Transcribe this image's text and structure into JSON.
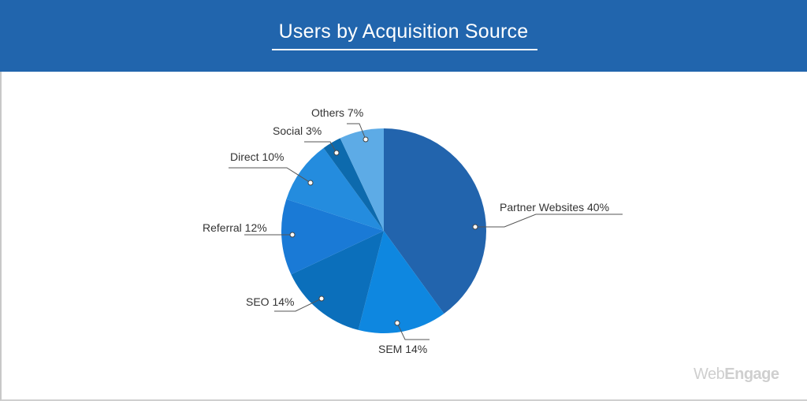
{
  "header": {
    "title": "Users by Acquisition Source",
    "background": "#2165ad"
  },
  "brand": {
    "name_light": "Web",
    "name_bold": "Engage"
  },
  "chart_data": {
    "type": "pie",
    "title": "Users by Acquisition Source",
    "categories": [
      "Partner Websites",
      "SEM",
      "SEO",
      "Referral",
      "Direct",
      "Social",
      "Others"
    ],
    "values": [
      40,
      14,
      14,
      12,
      10,
      3,
      7
    ],
    "unit": "%",
    "labels": [
      "Partner Websites 40%",
      "SEM 14%",
      "SEO 14%",
      "Referral 12%",
      "Direct 10%",
      "Social 3%",
      "Others 7%"
    ],
    "colors": [
      "#2264ad",
      "#0e87e0",
      "#0b6fbb",
      "#1a7ad6",
      "#248cde",
      "#0d6aad",
      "#5dabe6"
    ],
    "start_angle": "12 o'clock, clockwise",
    "legend": "none (leader-line labels)"
  }
}
